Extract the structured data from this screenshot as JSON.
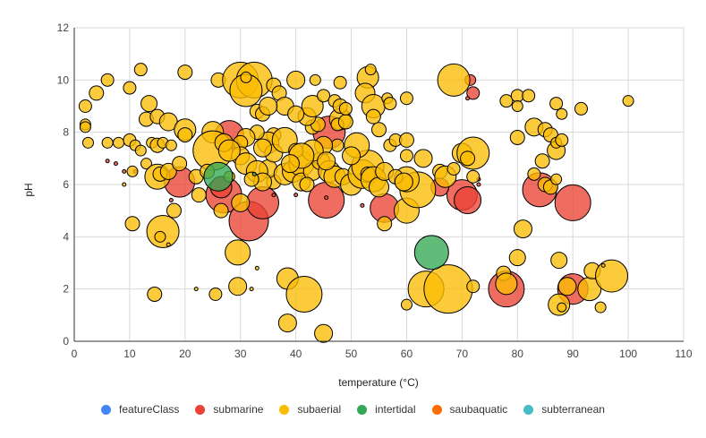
{
  "chart_data": {
    "type": "bubble",
    "xlabel": "temperature (°C)",
    "ylabel": "pH",
    "xlim": [
      0,
      110
    ],
    "ylim": [
      0,
      12
    ],
    "xticks": [
      0,
      10,
      20,
      30,
      40,
      50,
      60,
      70,
      80,
      90,
      100,
      110
    ],
    "yticks": [
      0,
      2,
      4,
      6,
      8,
      10,
      12
    ],
    "grid": true,
    "legend_position": "bottom",
    "series": [
      {
        "name": "featureClass",
        "color": "#4285f4",
        "points": []
      },
      {
        "name": "submarine",
        "color": "#ea4335",
        "points": [
          [
            28,
            7.9,
            16
          ],
          [
            27,
            5.6,
            20
          ],
          [
            31.5,
            4.6,
            22
          ],
          [
            34,
            5.3,
            18
          ],
          [
            45.5,
            5.4,
            20
          ],
          [
            46,
            8.0,
            18
          ],
          [
            56,
            5.1,
            16
          ],
          [
            70,
            5.6,
            17
          ],
          [
            71,
            5.4,
            15
          ],
          [
            84,
            5.8,
            19
          ],
          [
            90,
            5.3,
            20
          ],
          [
            78,
            2.0,
            20
          ],
          [
            90,
            2.0,
            17
          ],
          [
            19,
            6.1,
            17
          ],
          [
            71.5,
            10.0,
            6
          ],
          [
            72,
            9.5,
            7
          ],
          [
            66,
            5.9,
            10
          ],
          [
            26.5,
            5.9,
            12
          ],
          [
            6,
            6.9,
            2
          ],
          [
            7.5,
            6.8,
            2
          ],
          [
            9,
            6.5,
            2
          ],
          [
            17.5,
            5.4,
            2
          ],
          [
            40,
            5.6,
            2
          ],
          [
            45.5,
            5.5,
            2
          ],
          [
            73,
            6.2,
            2
          ],
          [
            73,
            6.0,
            2
          ],
          [
            71,
            9.3,
            2
          ],
          [
            52,
            5.2,
            2
          ],
          [
            36,
            5.6,
            2
          ],
          [
            11,
            6.5,
            2
          ]
        ]
      },
      {
        "name": "subaerial",
        "color": "#fbbc04",
        "points": [
          [
            2,
            8.3,
            6
          ],
          [
            2,
            8.2,
            6
          ],
          [
            2,
            9.0,
            7
          ],
          [
            4,
            9.5,
            8
          ],
          [
            6,
            10,
            7
          ],
          [
            10,
            9.7,
            7
          ],
          [
            12,
            10.4,
            7
          ],
          [
            20,
            10.3,
            8
          ],
          [
            26,
            10,
            8
          ],
          [
            30,
            10,
            20
          ],
          [
            32.5,
            10,
            20
          ],
          [
            31,
            9.6,
            18
          ],
          [
            31,
            10.1,
            6
          ],
          [
            36,
            9.8,
            8
          ],
          [
            40,
            10,
            10
          ],
          [
            43.5,
            10,
            6
          ],
          [
            48,
            9.9,
            7
          ],
          [
            53,
            10.1,
            12
          ],
          [
            53.5,
            10.4,
            6
          ],
          [
            52.5,
            9.5,
            11
          ],
          [
            54,
            9.0,
            13
          ],
          [
            56.5,
            9.3,
            6
          ],
          [
            57,
            9.1,
            7
          ],
          [
            60,
            9.3,
            7
          ],
          [
            68.5,
            10,
            18
          ],
          [
            78,
            9.2,
            7
          ],
          [
            80,
            9.4,
            7
          ],
          [
            82,
            9.4,
            7
          ],
          [
            80,
            9.0,
            6
          ],
          [
            87,
            9.1,
            7
          ],
          [
            88,
            8.7,
            6
          ],
          [
            91.5,
            8.9,
            7
          ],
          [
            100,
            9.2,
            6
          ],
          [
            2.5,
            7.6,
            6
          ],
          [
            6,
            7.6,
            6
          ],
          [
            8,
            7.6,
            6
          ],
          [
            10,
            7.7,
            7
          ],
          [
            11,
            7.5,
            6
          ],
          [
            12,
            7.3,
            6
          ],
          [
            13,
            8.5,
            8
          ],
          [
            13.5,
            9.1,
            9
          ],
          [
            15,
            8.6,
            8
          ],
          [
            17,
            8.4,
            10
          ],
          [
            20,
            8.1,
            12
          ],
          [
            20,
            7.9,
            8
          ],
          [
            14,
            7.6,
            6
          ],
          [
            15,
            7.5,
            8
          ],
          [
            16,
            7.6,
            6
          ],
          [
            17.5,
            7.5,
            6
          ],
          [
            13,
            6.8,
            6
          ],
          [
            15,
            6.3,
            14
          ],
          [
            15.5,
            6.4,
            8
          ],
          [
            17,
            6.5,
            9
          ],
          [
            19,
            6.8,
            8
          ],
          [
            10.5,
            6.5,
            6
          ],
          [
            10.5,
            4.5,
            8
          ],
          [
            16,
            4.2,
            18
          ],
          [
            15.5,
            4.0,
            6
          ],
          [
            18,
            5.0,
            8
          ],
          [
            14.5,
            1.8,
            8
          ],
          [
            22,
            6.3,
            8
          ],
          [
            22.5,
            5.6,
            8
          ],
          [
            25,
            8.0,
            12
          ],
          [
            25,
            7.3,
            22
          ],
          [
            27,
            7.6,
            10
          ],
          [
            26.5,
            5.0,
            8
          ],
          [
            25.5,
            1.8,
            7
          ],
          [
            29.5,
            3.4,
            14
          ],
          [
            29.5,
            2.1,
            10
          ],
          [
            22,
            2.0,
            2
          ],
          [
            32,
            2.0,
            2
          ],
          [
            33,
            2.8,
            2
          ],
          [
            9,
            6.0,
            2
          ],
          [
            17,
            3.7,
            2
          ],
          [
            38.5,
            2.4,
            12
          ],
          [
            41.5,
            1.8,
            20
          ],
          [
            38.5,
            0.7,
            10
          ],
          [
            45,
            0.3,
            10
          ],
          [
            60,
            1.4,
            6
          ],
          [
            63.5,
            2.0,
            20
          ],
          [
            67.5,
            2.0,
            27
          ],
          [
            72,
            2.1,
            7
          ],
          [
            77.5,
            2.6,
            8
          ],
          [
            78,
            2.2,
            12
          ],
          [
            80,
            3.2,
            9
          ],
          [
            81,
            4.3,
            10
          ],
          [
            87.5,
            3.1,
            9
          ],
          [
            87.5,
            1.4,
            12
          ],
          [
            88,
            1.3,
            5
          ],
          [
            89,
            2.1,
            10
          ],
          [
            93,
            2.0,
            13
          ],
          [
            93.5,
            2.7,
            9
          ],
          [
            97,
            2.5,
            18
          ],
          [
            95,
            1.3,
            6
          ],
          [
            95.5,
            2.9,
            2
          ],
          [
            60,
            5.0,
            14
          ],
          [
            56,
            4.5,
            8
          ],
          [
            62,
            5.8,
            20
          ],
          [
            60,
            6.2,
            14
          ],
          [
            57,
            7.5,
            7
          ],
          [
            58,
            7.7,
            7
          ],
          [
            60,
            7.7,
            8
          ],
          [
            60,
            7.1,
            7
          ],
          [
            63,
            7.0,
            10
          ],
          [
            66,
            6.5,
            8
          ],
          [
            70,
            7.2,
            11
          ],
          [
            72,
            7.2,
            18
          ],
          [
            71,
            7.0,
            8
          ],
          [
            72,
            6.3,
            7
          ],
          [
            67,
            6.3,
            12
          ],
          [
            68.5,
            6.6,
            7
          ],
          [
            83,
            8.2,
            10
          ],
          [
            85,
            8.1,
            8
          ],
          [
            86,
            7.9,
            8
          ],
          [
            87,
            7.3,
            10
          ],
          [
            87,
            7.6,
            6
          ],
          [
            88,
            7.7,
            7
          ],
          [
            80,
            7.8,
            8
          ],
          [
            84.5,
            6.9,
            8
          ],
          [
            83,
            6.4,
            7
          ],
          [
            85,
            6.0,
            8
          ],
          [
            86,
            5.9,
            8
          ],
          [
            87,
            6.2,
            6
          ],
          [
            28,
            6.3,
            6
          ],
          [
            36,
            6.1,
            8
          ],
          [
            35,
            6.6,
            10
          ],
          [
            38,
            6.4,
            12
          ],
          [
            39.5,
            6.5,
            12
          ],
          [
            41,
            6.8,
            14
          ],
          [
            41,
            6.1,
            10
          ],
          [
            43,
            6.5,
            10
          ],
          [
            44.5,
            6.9,
            10
          ],
          [
            46,
            6.5,
            12
          ],
          [
            47,
            6.3,
            12
          ],
          [
            48.5,
            6.3,
            9
          ],
          [
            50,
            6.0,
            12
          ],
          [
            52,
            6.4,
            16
          ],
          [
            53,
            6.7,
            18
          ],
          [
            53,
            6.4,
            8
          ],
          [
            54,
            6.2,
            14
          ],
          [
            55,
            5.9,
            11
          ],
          [
            56,
            6.5,
            10
          ],
          [
            58,
            6.3,
            8
          ],
          [
            59.5,
            6.1,
            10
          ],
          [
            51,
            7.5,
            14
          ],
          [
            50,
            7.1,
            10
          ],
          [
            47.5,
            7.5,
            7
          ],
          [
            45,
            7.5,
            10
          ],
          [
            43,
            8.2,
            8
          ],
          [
            44,
            8.3,
            8
          ],
          [
            42,
            8.6,
            10
          ],
          [
            43,
            9.0,
            12
          ],
          [
            45,
            9.4,
            7
          ],
          [
            47,
            9.2,
            7
          ],
          [
            48,
            8.5,
            12
          ],
          [
            48,
            9.0,
            8
          ],
          [
            47.5,
            8.3,
            7
          ],
          [
            49,
            8.4,
            8
          ],
          [
            49,
            8.9,
            7
          ],
          [
            55,
            8.1,
            8
          ],
          [
            54,
            8.6,
            8
          ],
          [
            37,
            9.5,
            8
          ],
          [
            38,
            9.0,
            10
          ],
          [
            40,
            8.7,
            9
          ],
          [
            33,
            8.8,
            8
          ],
          [
            34,
            8.7,
            8
          ],
          [
            35,
            9.0,
            10
          ],
          [
            36,
            7.9,
            8
          ],
          [
            35,
            7.6,
            12
          ],
          [
            36,
            7.2,
            10
          ],
          [
            38,
            7.7,
            14
          ],
          [
            34,
            7.4,
            10
          ],
          [
            33,
            8.0,
            8
          ],
          [
            31,
            7.8,
            10
          ],
          [
            30,
            7.6,
            8
          ],
          [
            30,
            7.1,
            10
          ],
          [
            28,
            7.3,
            12
          ],
          [
            31,
            6.8,
            12
          ],
          [
            33,
            6.5,
            12
          ],
          [
            34,
            6.1,
            10
          ],
          [
            32,
            6.2,
            8
          ],
          [
            30,
            5.3,
            10
          ],
          [
            43,
            7.3,
            12
          ],
          [
            40,
            7.3,
            8
          ],
          [
            45.5,
            6.9,
            10
          ],
          [
            41,
            7.1,
            14
          ],
          [
            39,
            6.8,
            10
          ],
          [
            42,
            6.0,
            8
          ],
          [
            24,
            6.5,
            8
          ]
        ]
      },
      {
        "name": "intertidal",
        "color": "#34a853",
        "points": [
          [
            26,
            6.3,
            16
          ],
          [
            64.5,
            3.4,
            19
          ],
          [
            32.5,
            6.4,
            2
          ]
        ]
      },
      {
        "name": "saubaquatic",
        "color": "#ff6d01",
        "points": []
      },
      {
        "name": "subterranean",
        "color": "#46bdc6",
        "points": []
      }
    ]
  }
}
